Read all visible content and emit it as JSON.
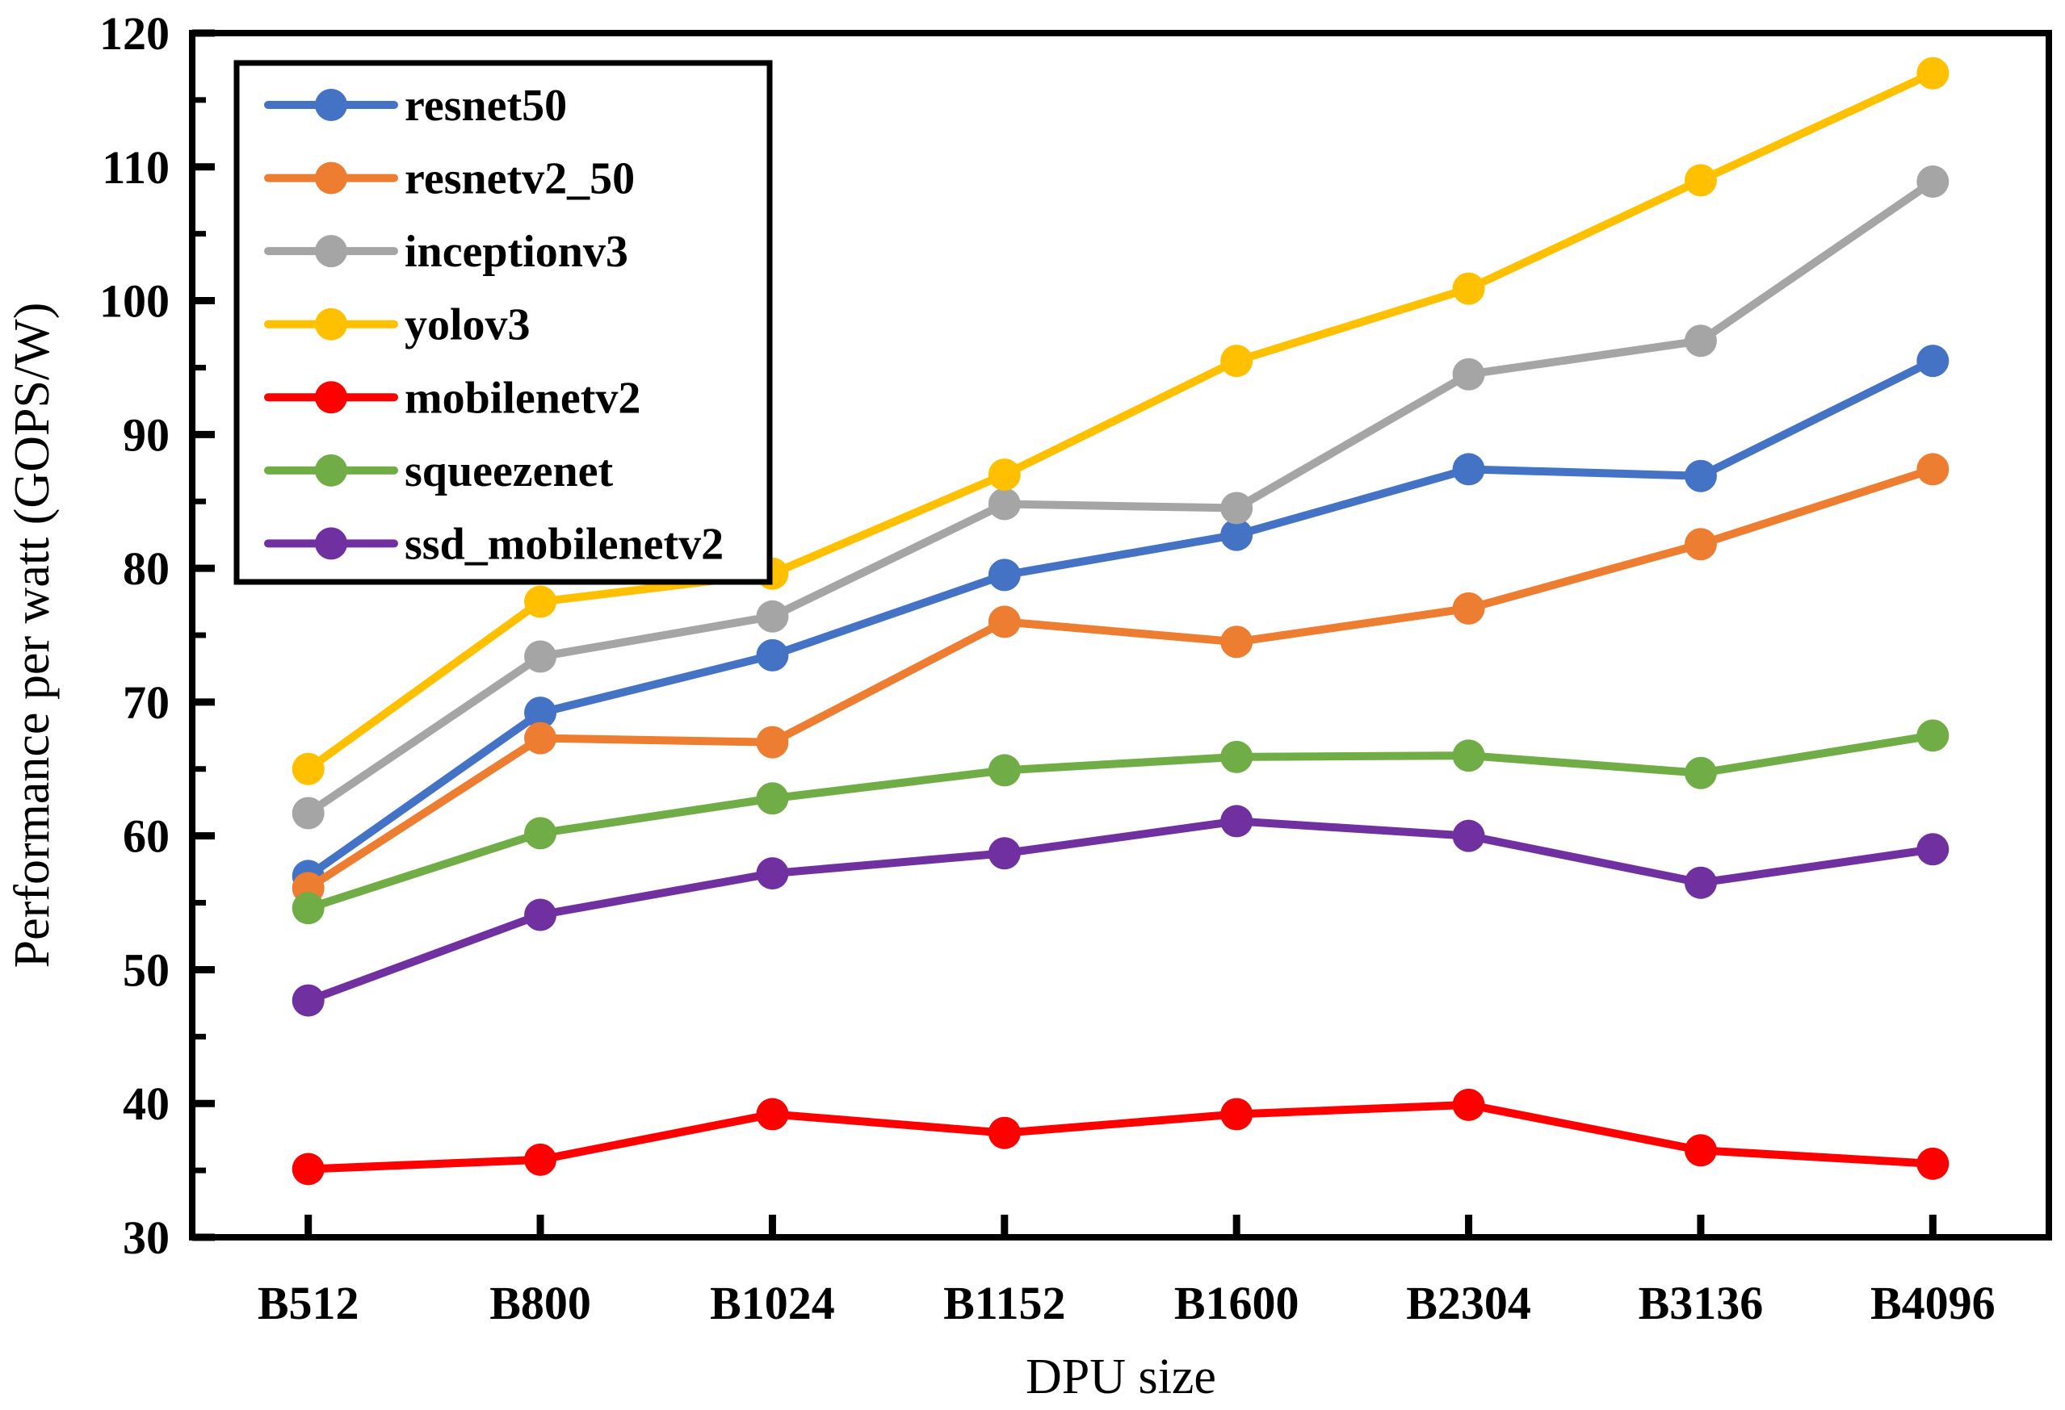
{
  "figure": {
    "xlabel": "DPU size",
    "ylabel": "Performance per watt (GOPS/W)"
  },
  "chart_data": {
    "type": "line",
    "title": "",
    "xlabel": "DPU size",
    "ylabel": "Performance per watt (GOPS/W)",
    "categories": [
      "B512",
      "B800",
      "B1024",
      "B1152",
      "B1600",
      "B2304",
      "B3136",
      "B4096"
    ],
    "series": [
      {
        "name": "resnet50",
        "color": "#4472C4",
        "values": [
          57.0,
          69.2,
          73.5,
          79.5,
          82.5,
          87.4,
          86.9,
          95.5
        ]
      },
      {
        "name": "resnetv2_50",
        "color": "#ED7D31",
        "values": [
          56.1,
          67.3,
          67.0,
          76.0,
          74.5,
          77.0,
          81.8,
          87.4
        ]
      },
      {
        "name": "inceptionv3",
        "color": "#A5A5A5",
        "values": [
          61.7,
          73.4,
          76.4,
          84.8,
          84.5,
          94.5,
          97.0,
          108.9
        ]
      },
      {
        "name": "yolov3",
        "color": "#FFC000",
        "values": [
          65.0,
          77.5,
          79.6,
          87.0,
          95.5,
          100.9,
          109.0,
          117.0
        ]
      },
      {
        "name": "mobilenetv2",
        "color": "#FF0000",
        "values": [
          35.1,
          35.8,
          39.2,
          37.8,
          39.2,
          39.9,
          36.5,
          35.5
        ]
      },
      {
        "name": "squeezenet",
        "color": "#70AD47",
        "values": [
          54.6,
          60.2,
          62.8,
          64.9,
          65.9,
          66.0,
          64.7,
          67.5
        ]
      },
      {
        "name": "ssd_mobilenetv2",
        "color": "#7030A0",
        "values": [
          47.7,
          54.1,
          57.2,
          58.7,
          61.1,
          60.0,
          56.5,
          59.0
        ]
      }
    ],
    "ylim": [
      30,
      120
    ],
    "ytick_step": 10,
    "ytick_minor_step": 5,
    "ytick_labels": [
      "30",
      "40",
      "50",
      "60",
      "70",
      "80",
      "90",
      "100",
      "110",
      "120"
    ],
    "grid": false,
    "legend_position": "upper-left",
    "marker": "circle",
    "line_style": "solid",
    "axis_color": "#000000",
    "background_color": "#FFFFFF"
  }
}
